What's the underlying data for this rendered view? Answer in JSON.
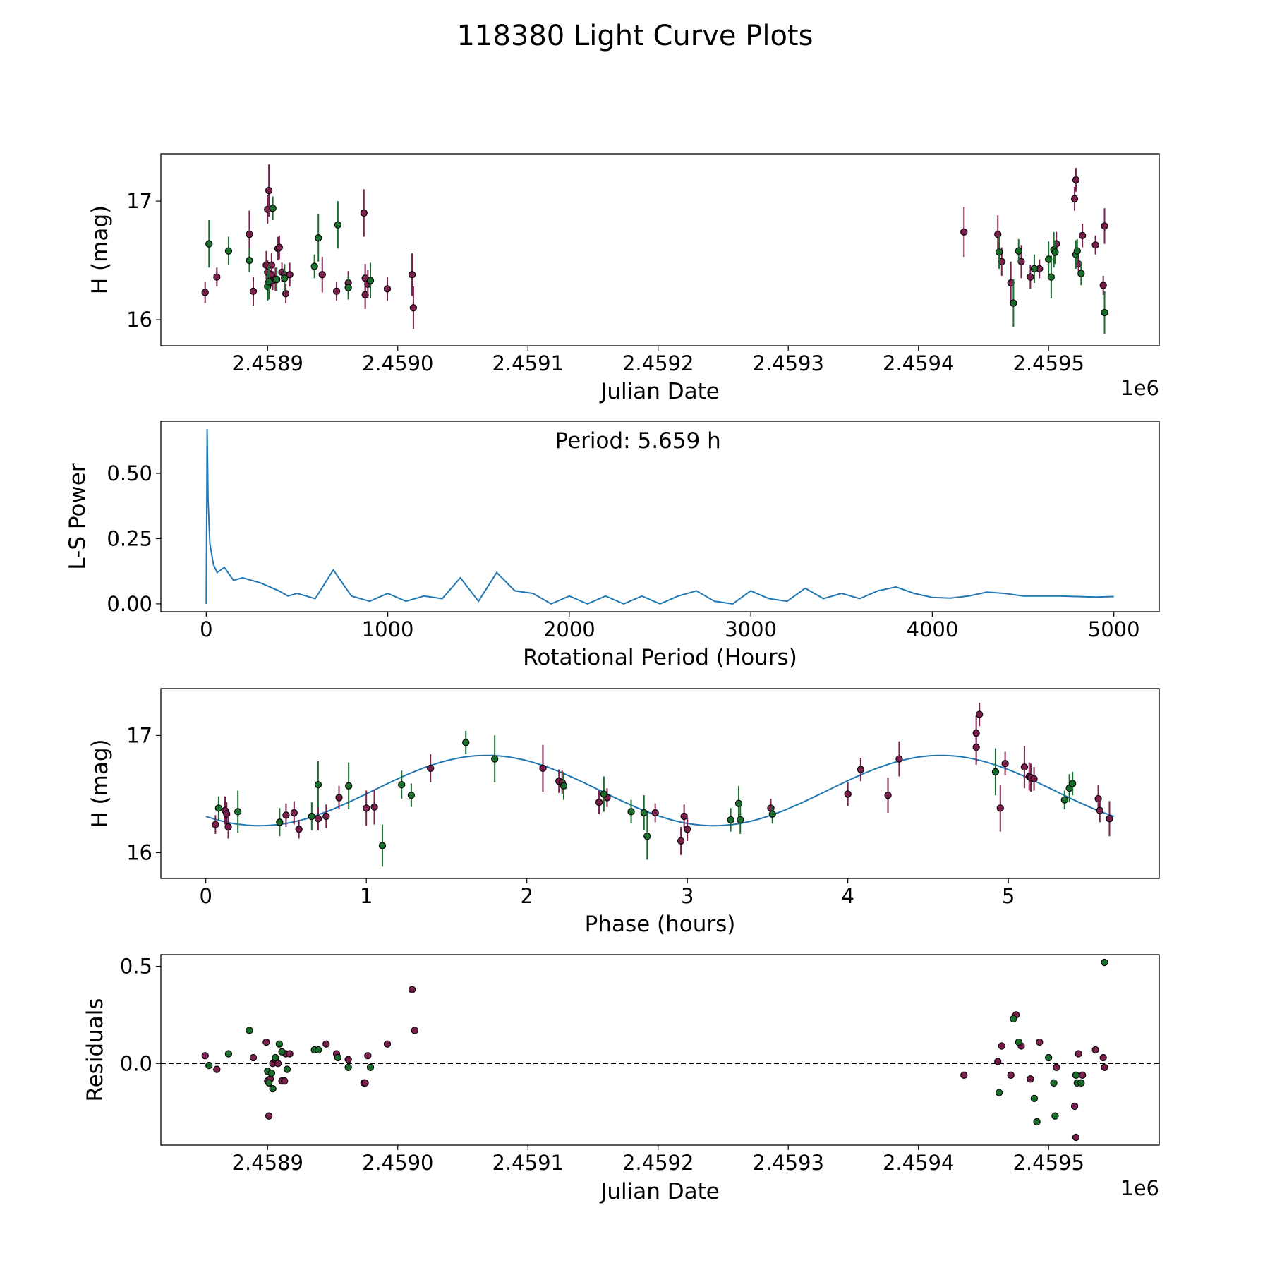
{
  "figure": {
    "title": "118380 Light Curve Plots",
    "colors": {
      "band_a": "#7a1e4e",
      "band_b": "#1a6e2c",
      "line": "#1f77b4",
      "marker_edge": "#000000"
    }
  },
  "chart_data": [
    {
      "id": "lightcurve",
      "type": "scatter",
      "xlabel": "Julian Date",
      "ylabel": "H (mag)",
      "x_offset_label": "1e6",
      "xlim": [
        2.458818,
        2.459585
      ],
      "ylim": [
        15.78,
        17.4
      ],
      "xticks": [
        2.4589,
        2.459,
        2.4591,
        2.4592,
        2.4593,
        2.4594,
        2.4595
      ],
      "xtick_labels": [
        "2.4589",
        "2.4590",
        "2.4591",
        "2.4592",
        "2.4593",
        "2.4594",
        "2.4595"
      ],
      "yticks": [
        16,
        17
      ],
      "ytick_labels": [
        "16",
        "17"
      ],
      "series": [
        {
          "name": "band_a",
          "color_key": "band_a",
          "x": [
            2.458852,
            2.458861,
            2.458886,
            2.458889,
            2.458899,
            2.4589,
            2.4589,
            2.458901,
            2.458903,
            2.458903,
            2.458904,
            2.458906,
            2.458908,
            2.458909,
            2.458911,
            2.458913,
            2.458914,
            2.458917,
            2.458942,
            2.458953,
            2.458962,
            2.458974,
            2.458975,
            2.458975,
            2.458977,
            2.458992,
            2.459011,
            2.459012,
            2.459435,
            2.459461,
            2.459464,
            2.459471,
            2.459479,
            2.459486,
            2.459493,
            2.459506,
            2.45952,
            2.459521,
            2.459523,
            2.459526,
            2.459536,
            2.459542,
            2.459543
          ],
          "y": [
            16.23,
            16.36,
            16.72,
            16.24,
            16.46,
            16.4,
            16.93,
            17.09,
            16.46,
            16.38,
            16.33,
            16.34,
            16.6,
            16.61,
            16.4,
            16.38,
            16.22,
            16.38,
            16.38,
            16.24,
            16.31,
            16.9,
            16.35,
            16.21,
            16.3,
            16.26,
            16.38,
            16.1,
            16.74,
            16.72,
            16.49,
            16.31,
            16.49,
            16.36,
            16.43,
            16.64,
            17.02,
            17.18,
            16.47,
            16.71,
            16.63,
            16.29,
            16.79
          ],
          "err": [
            0.09,
            0.08,
            0.2,
            0.12,
            0.12,
            0.1,
            0.12,
            0.22,
            0.1,
            0.1,
            0.08,
            0.1,
            0.1,
            0.1,
            0.08,
            0.08,
            0.08,
            0.1,
            0.15,
            0.08,
            0.1,
            0.2,
            0.12,
            0.12,
            0.12,
            0.1,
            0.18,
            0.18,
            0.21,
            0.16,
            0.12,
            0.18,
            0.14,
            0.1,
            0.08,
            0.1,
            0.1,
            0.1,
            0.1,
            0.1,
            0.08,
            0.08,
            0.15
          ]
        },
        {
          "name": "band_b",
          "color_key": "band_b",
          "x": [
            2.458855,
            2.45887,
            2.458886,
            2.4589,
            2.458901,
            2.458904,
            2.458907,
            2.458913,
            2.458936,
            2.458939,
            2.458954,
            2.458962,
            2.458979,
            2.459462,
            2.459473,
            2.459477,
            2.459489,
            2.4595,
            2.459502,
            2.459504,
            2.459505,
            2.459521,
            2.459522,
            2.459525,
            2.459543
          ],
          "y": [
            16.64,
            16.58,
            16.5,
            16.28,
            16.32,
            16.94,
            16.34,
            16.35,
            16.45,
            16.69,
            16.8,
            16.27,
            16.33,
            16.57,
            16.14,
            16.58,
            16.43,
            16.51,
            16.36,
            16.59,
            16.57,
            16.55,
            16.58,
            16.39,
            16.06
          ],
          "err": [
            0.2,
            0.12,
            0.1,
            0.12,
            0.15,
            0.1,
            0.1,
            0.12,
            0.1,
            0.2,
            0.2,
            0.1,
            0.15,
            0.14,
            0.2,
            0.1,
            0.12,
            0.15,
            0.18,
            0.15,
            0.1,
            0.12,
            0.1,
            0.1,
            0.18
          ]
        }
      ]
    },
    {
      "id": "periodogram",
      "type": "line",
      "xlabel": "Rotational Period (Hours)",
      "ylabel": "L-S Power",
      "annotation": "Period: 5.659 h",
      "xlim": [
        -250,
        5250
      ],
      "ylim": [
        -0.03,
        0.7
      ],
      "xticks": [
        0,
        1000,
        2000,
        3000,
        4000,
        5000
      ],
      "xtick_labels": [
        "0",
        "1000",
        "2000",
        "3000",
        "4000",
        "5000"
      ],
      "yticks": [
        0,
        0.25,
        0.5
      ],
      "ytick_labels": [
        "0.00",
        "0.25",
        "0.50"
      ],
      "x": [
        0,
        5,
        10,
        20,
        40,
        60,
        100,
        150,
        200,
        300,
        400,
        450,
        500,
        600,
        700,
        800,
        900,
        1000,
        1100,
        1200,
        1300,
        1400,
        1500,
        1600,
        1700,
        1800,
        1900,
        2000,
        2100,
        2200,
        2300,
        2400,
        2500,
        2600,
        2700,
        2800,
        2900,
        3000,
        3100,
        3200,
        3300,
        3400,
        3500,
        3600,
        3700,
        3800,
        3900,
        4000,
        4100,
        4200,
        4300,
        4400,
        4500,
        4600,
        4700,
        4800,
        4900,
        5000
      ],
      "y": [
        0.0,
        0.67,
        0.4,
        0.23,
        0.15,
        0.12,
        0.14,
        0.09,
        0.1,
        0.08,
        0.05,
        0.03,
        0.04,
        0.02,
        0.13,
        0.03,
        0.01,
        0.04,
        0.01,
        0.03,
        0.02,
        0.1,
        0.01,
        0.12,
        0.05,
        0.04,
        0.0,
        0.03,
        0.0,
        0.03,
        0.0,
        0.03,
        0.0,
        0.03,
        0.05,
        0.01,
        0.0,
        0.05,
        0.02,
        0.01,
        0.06,
        0.02,
        0.04,
        0.02,
        0.05,
        0.065,
        0.04,
        0.025,
        0.022,
        0.03,
        0.045,
        0.04,
        0.03,
        0.03,
        0.03,
        0.028,
        0.026,
        0.028
      ]
    },
    {
      "id": "phased",
      "type": "scatter",
      "xlabel": "Phase (hours)",
      "ylabel": "H (mag)",
      "xlim": [
        -0.28,
        5.94
      ],
      "ylim": [
        15.78,
        17.4
      ],
      "xticks": [
        0,
        1,
        2,
        3,
        4,
        5
      ],
      "xtick_labels": [
        "0",
        "1",
        "2",
        "3",
        "4",
        "5"
      ],
      "yticks": [
        16,
        17
      ],
      "ytick_labels": [
        "16",
        "17"
      ],
      "model": {
        "phase_max": 5.659,
        "mean": 16.53,
        "amplitude": 0.3,
        "peak_phase": 1.75
      },
      "series": [
        {
          "name": "band_a",
          "color_key": "band_a",
          "x": [
            0.06,
            0.12,
            0.13,
            0.14,
            0.5,
            0.55,
            0.58,
            0.7,
            0.75,
            0.83,
            1.0,
            1.05,
            1.4,
            2.1,
            2.2,
            2.22,
            2.45,
            2.5,
            2.8,
            2.96,
            2.98,
            3.0,
            3.52,
            4.0,
            4.08,
            4.25,
            4.32,
            4.8,
            4.8,
            4.82,
            4.95,
            4.98,
            5.1,
            5.13,
            5.14,
            5.16,
            5.56,
            5.57,
            5.63
          ],
          "y": [
            16.24,
            16.36,
            16.33,
            16.22,
            16.32,
            16.34,
            16.2,
            16.29,
            16.31,
            16.47,
            16.38,
            16.39,
            16.72,
            16.72,
            16.61,
            16.6,
            16.43,
            16.47,
            16.34,
            16.1,
            16.31,
            16.2,
            16.38,
            16.5,
            16.71,
            16.49,
            16.8,
            16.9,
            17.02,
            17.18,
            16.38,
            16.76,
            16.73,
            16.65,
            16.64,
            16.63,
            16.46,
            16.36,
            16.29
          ],
          "err": [
            0.08,
            0.12,
            0.1,
            0.1,
            0.1,
            0.1,
            0.08,
            0.1,
            0.1,
            0.1,
            0.15,
            0.15,
            0.12,
            0.2,
            0.1,
            0.1,
            0.1,
            0.08,
            0.08,
            0.12,
            0.1,
            0.1,
            0.08,
            0.1,
            0.1,
            0.15,
            0.15,
            0.15,
            0.15,
            0.1,
            0.2,
            0.1,
            0.18,
            0.12,
            0.12,
            0.1,
            0.12,
            0.1,
            0.15
          ]
        },
        {
          "name": "band_b",
          "color_key": "band_b",
          "x": [
            0.08,
            0.2,
            0.46,
            0.66,
            0.7,
            0.89,
            1.1,
            1.22,
            1.28,
            1.62,
            1.8,
            2.23,
            2.48,
            2.65,
            2.73,
            2.75,
            3.27,
            3.32,
            3.33,
            3.53,
            4.92,
            5.35,
            5.38,
            5.4
          ],
          "y": [
            16.38,
            16.35,
            16.26,
            16.31,
            16.58,
            16.57,
            16.06,
            16.58,
            16.49,
            16.94,
            16.8,
            16.57,
            16.5,
            16.35,
            16.34,
            16.14,
            16.28,
            16.42,
            16.28,
            16.33,
            16.69,
            16.45,
            16.55,
            16.59
          ],
          "err": [
            0.1,
            0.18,
            0.12,
            0.12,
            0.2,
            0.2,
            0.18,
            0.12,
            0.1,
            0.1,
            0.2,
            0.12,
            0.15,
            0.1,
            0.15,
            0.2,
            0.1,
            0.15,
            0.12,
            0.08,
            0.2,
            0.08,
            0.12,
            0.1
          ]
        }
      ]
    },
    {
      "id": "residuals",
      "type": "scatter",
      "xlabel": "Julian Date",
      "ylabel": "Residuals",
      "x_offset_label": "1e6",
      "xlim": [
        2.458818,
        2.459585
      ],
      "ylim": [
        -0.42,
        0.56
      ],
      "xticks": [
        2.4589,
        2.459,
        2.4591,
        2.4592,
        2.4593,
        2.4594,
        2.4595
      ],
      "xtick_labels": [
        "2.4589",
        "2.4590",
        "2.4591",
        "2.4592",
        "2.4593",
        "2.4594",
        "2.4595"
      ],
      "yticks": [
        0.0,
        0.5
      ],
      "ytick_labels": [
        "0.0",
        "0.5"
      ],
      "zero_line": 0,
      "series": [
        {
          "name": "band_a",
          "color_key": "band_a",
          "x": [
            2.458852,
            2.458861,
            2.458889,
            2.458899,
            2.4589,
            2.458901,
            2.458902,
            2.458903,
            2.458904,
            2.458906,
            2.458908,
            2.458911,
            2.458913,
            2.458914,
            2.458917,
            2.458945,
            2.458953,
            2.458962,
            2.458974,
            2.458975,
            2.458977,
            2.458992,
            2.459011,
            2.459013,
            2.459435,
            2.459461,
            2.459464,
            2.459471,
            2.459475,
            2.459479,
            2.459486,
            2.459493,
            2.459506,
            2.45952,
            2.459521,
            2.459523,
            2.459526,
            2.459536,
            2.459542,
            2.459543
          ],
          "y": [
            0.04,
            -0.03,
            0.03,
            0.11,
            -0.09,
            -0.27,
            -0.08,
            -0.05,
            0.0,
            0.02,
            0.0,
            -0.09,
            -0.09,
            0.05,
            0.05,
            0.1,
            0.05,
            0.02,
            -0.1,
            -0.1,
            0.04,
            0.1,
            0.38,
            0.17,
            -0.06,
            0.01,
            0.09,
            -0.06,
            0.25,
            0.09,
            -0.08,
            0.11,
            -0.02,
            -0.22,
            -0.38,
            0.05,
            -0.06,
            0.07,
            0.03,
            -0.02
          ],
          "err": []
        },
        {
          "name": "band_b",
          "color_key": "band_b",
          "x": [
            2.458855,
            2.45887,
            2.458886,
            2.4589,
            2.458901,
            2.458903,
            2.458904,
            2.458906,
            2.458909,
            2.458911,
            2.458915,
            2.458936,
            2.458939,
            2.458954,
            2.458962,
            2.458979,
            2.459462,
            2.459473,
            2.459477,
            2.459489,
            2.459491,
            2.4595,
            2.459504,
            2.459505,
            2.459521,
            2.459522,
            2.459525,
            2.459543
          ],
          "y": [
            -0.01,
            0.05,
            0.17,
            -0.04,
            -0.1,
            -0.05,
            -0.13,
            0.03,
            0.1,
            0.06,
            -0.03,
            0.07,
            0.07,
            0.03,
            -0.02,
            -0.02,
            -0.15,
            0.23,
            0.11,
            -0.18,
            -0.3,
            0.03,
            -0.1,
            -0.27,
            -0.06,
            -0.1,
            -0.1,
            0.52
          ],
          "err": []
        }
      ]
    }
  ]
}
